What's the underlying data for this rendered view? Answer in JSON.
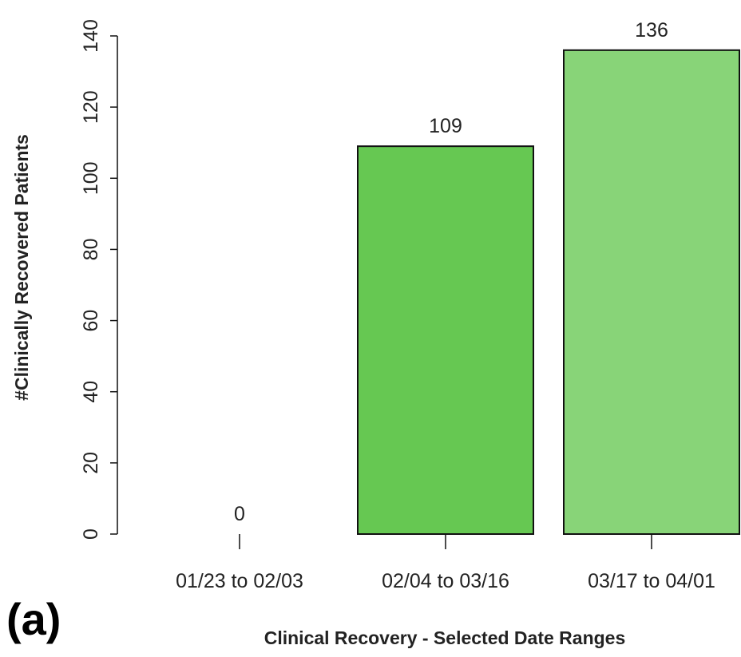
{
  "chart_data": {
    "type": "bar",
    "ylabel": "#Clinically Recovered Patients",
    "xlabel": "Clinical Recovery - Selected Date Ranges",
    "panel_label": "(a)",
    "categories": [
      "01/23 to 02/03",
      "02/04 to 03/16",
      "03/17 to 04/01"
    ],
    "values": [
      0,
      109,
      136
    ],
    "colors": [
      "#3fa02e",
      "#66c852",
      "#88d478"
    ],
    "ylim": [
      0,
      140
    ],
    "yticks": [
      0,
      20,
      40,
      60,
      80,
      100,
      120,
      140
    ],
    "grid": false
  }
}
